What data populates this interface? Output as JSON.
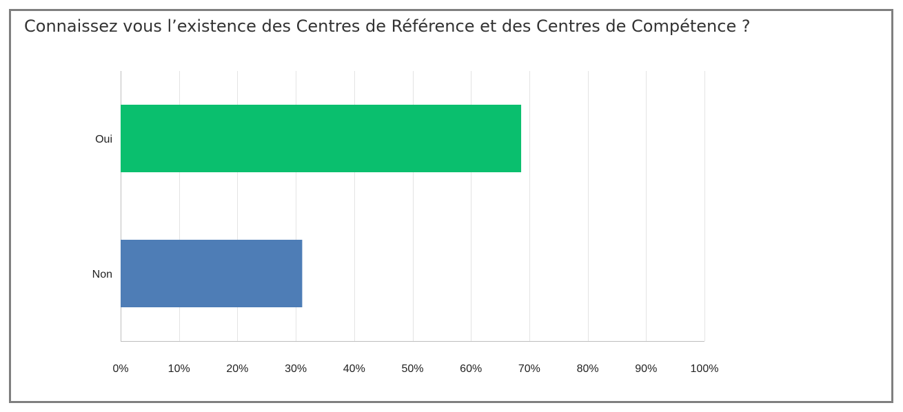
{
  "chart_data": {
    "type": "bar",
    "orientation": "horizontal",
    "title": "Connaissez vous l’existence des Centres de Référence et des Centres de Compétence ?",
    "categories": [
      "Oui",
      "Non"
    ],
    "values": [
      68.6,
      31.1
    ],
    "colors": [
      "#0abf6e",
      "#4e7db6"
    ],
    "xlim": [
      0,
      100
    ],
    "xticks": [
      "0%",
      "10%",
      "20%",
      "30%",
      "40%",
      "50%",
      "60%",
      "70%",
      "80%",
      "90%",
      "100%"
    ],
    "grid": true,
    "legend": "none"
  }
}
